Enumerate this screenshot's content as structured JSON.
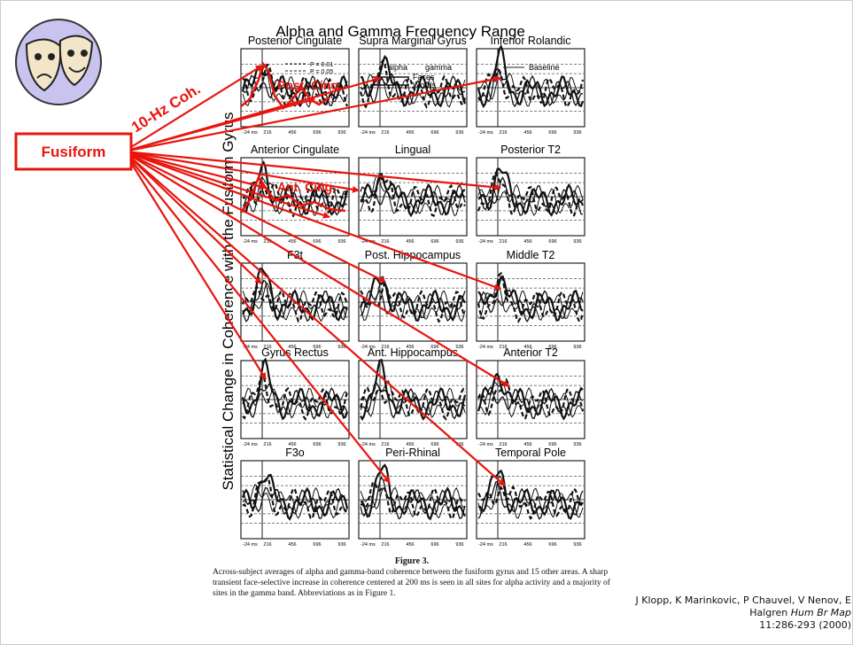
{
  "figure": {
    "title": "Alpha and Gamma Frequency Range",
    "y_axis_label": "Statistical Change in Coherence with the Fusiform Gyrus",
    "panels": [
      "Posterior Cingulate",
      "Supra Marginal Gyrus",
      "Inferior Rolandic",
      "Anterior Cingulate",
      "Lingual",
      "Posterior T2",
      "F3t",
      "Post. Hippocampus",
      "Middle T2",
      "Gyrus Rectus",
      "Ant. Hippocampus",
      "Anterior T2",
      "F3o",
      "Peri-Rhinal",
      "Temporal Pole"
    ],
    "x_ticks": [
      "-24 ms",
      "216",
      "456",
      "696",
      "936"
    ],
    "legend": {
      "significance": [
        "P = 0.01",
        "P = 0.05"
      ],
      "bands": [
        "alpha",
        "gamma"
      ],
      "conditions": [
        "Faces",
        "Words"
      ],
      "baseline": "Baseline"
    },
    "caption_label": "Figure 3.",
    "caption": "Across-subject averages of alpha and gamma-band coherence between the fusiform gyrus and 15 other areas. A sharp transient face-selective increase in coherence centered at 200 ms is seen in all sites for alpha activity and a majority of sites in the gamma band. Abbreviations as in Figure 1."
  },
  "annotations": {
    "source": "Fusiform",
    "coherence": "10-Hz Coh.",
    "posterior": "Post. Cing.",
    "anterior": "Ant. Cing."
  },
  "citation": {
    "authors": "J Klopp, K Marinkovic, P Chauvel, V Nenov, E Halgren",
    "journal": "Hum Br Map",
    "volume": "11:286-293 (2000)"
  }
}
